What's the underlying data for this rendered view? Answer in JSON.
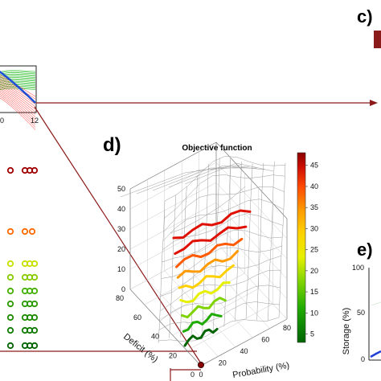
{
  "panels": {
    "c": "c)",
    "d": "d)",
    "e": "e)"
  },
  "chart_data": [
    {
      "panel": "d",
      "type": "surface3d",
      "title": "Objective function",
      "xlabel": "Probability (%)",
      "ylabel": "Deficit (%)",
      "x_ticks": [
        "0",
        "20",
        "40",
        "60",
        "80"
      ],
      "y_ticks": [
        "0",
        "20",
        "40",
        "60",
        "80"
      ],
      "z_ticks": [
        "0",
        "10",
        "20",
        "30",
        "40",
        "50"
      ],
      "zlim": [
        0,
        50
      ],
      "colorbar": {
        "ticks": [
          "5",
          "10",
          "15",
          "20",
          "25",
          "30",
          "35",
          "40",
          "45"
        ],
        "range": [
          3,
          48
        ],
        "colors": [
          "#006400",
          "#1faa00",
          "#7fd400",
          "#e6f000",
          "#ffd000",
          "#ff9a00",
          "#ff5a00",
          "#e01000",
          "#8b0000"
        ]
      },
      "highlight_point": "#8b0000",
      "contour_levels": [
        45,
        40,
        35,
        30,
        25,
        20,
        15,
        10,
        5
      ]
    },
    {
      "panel": "top-left-inset",
      "type": "line",
      "x_ticks": [
        "0",
        "12"
      ],
      "series_colors": [
        "#ff0000",
        "#00b000",
        "#1f4fd6"
      ]
    },
    {
      "panel": "left-scatter",
      "type": "scatter",
      "marker": "ring",
      "rows": [
        {
          "color": "#a00000",
          "count": 4
        },
        {
          "color": "#ff6a00",
          "count": 3
        },
        {
          "color": "#c8e000",
          "count": 4
        },
        {
          "color": "#88cc00",
          "count": 4
        },
        {
          "color": "#44b000",
          "count": 4
        },
        {
          "color": "#2a9a00",
          "count": 4
        },
        {
          "color": "#1e8a00",
          "count": 4
        },
        {
          "color": "#0f7a00",
          "count": 4
        },
        {
          "color": "#006400",
          "count": 4
        }
      ]
    },
    {
      "panel": "e",
      "type": "line",
      "ylabel": "Storage (%)",
      "y_ticks": [
        "0",
        "50",
        "100"
      ],
      "ylim": [
        0,
        100
      ]
    }
  ]
}
